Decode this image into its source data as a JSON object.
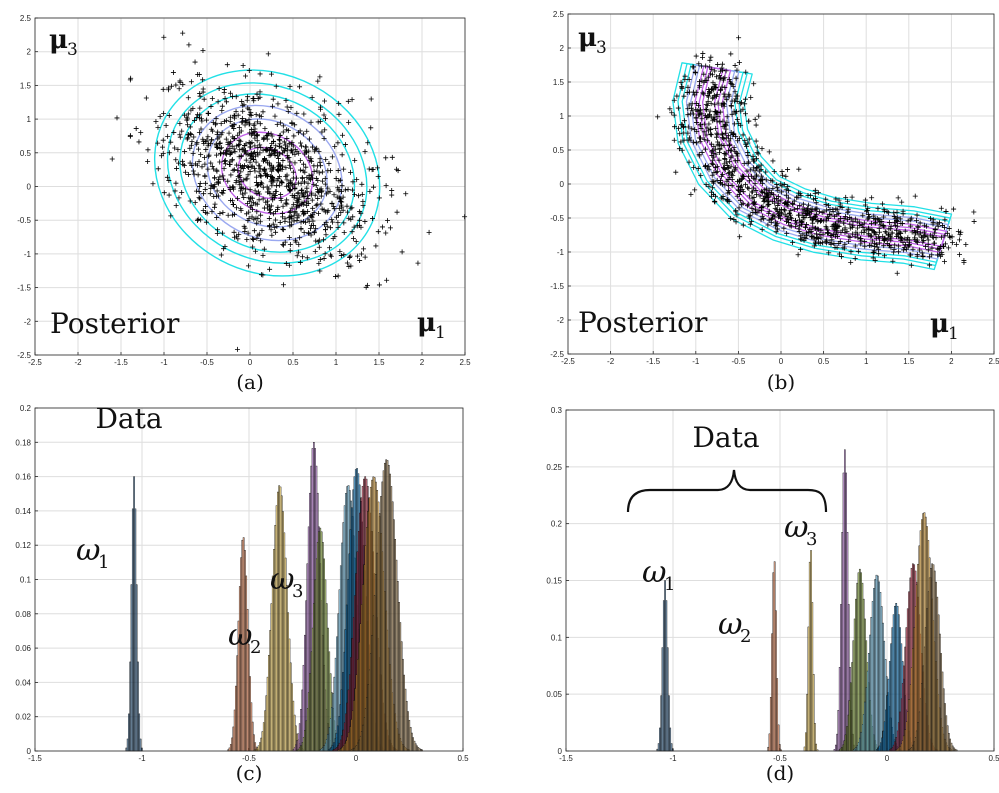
{
  "panels": [
    {
      "id": "a",
      "caption": "(a)"
    },
    {
      "id": "b",
      "caption": "(b)"
    },
    {
      "id": "c",
      "caption": "(c)"
    },
    {
      "id": "d",
      "caption": "(d)"
    }
  ],
  "colors": {
    "contour_outer": "#22e0e6",
    "contour_inner": "#c060e8",
    "points": "#000000",
    "hist": [
      "#1f4e79",
      "#d9713f",
      "#e8c04a",
      "#9b59b6",
      "#7a9a2a",
      "#5fb0d9",
      "#0072bd",
      "#a2142f",
      "#e0a030",
      "#8a6a3a"
    ]
  },
  "chart_data": [
    {
      "type": "scatter",
      "panel": "a",
      "note": "Posterior",
      "x_symbol": "μ",
      "x_subscript": "1",
      "y_symbol": "μ",
      "y_subscript": "3",
      "xlim": [
        -2.5,
        2.5
      ],
      "ylim": [
        -2.5,
        2.5
      ],
      "xticks": [
        "-2.5",
        "-2",
        "-1.5",
        "-1",
        "-0.5",
        "0",
        "0.5",
        "1",
        "1.5",
        "2",
        "2.5"
      ],
      "yticks": [
        "-2.5",
        "-2",
        "-1.5",
        "-1",
        "-0.5",
        "0",
        "0.5",
        "1",
        "1.5",
        "2",
        "2.5"
      ],
      "grid": true,
      "cloud": {
        "center": [
          0.2,
          0.2
        ],
        "spread_x": 0.6,
        "spread_y": 0.65,
        "correlation": -0.45,
        "count": 1100
      },
      "contours": [
        {
          "rx": 1.35,
          "ry": 1.15
        },
        {
          "rx": 1.2,
          "ry": 1.0
        },
        {
          "rx": 1.05,
          "ry": 0.88
        },
        {
          "rx": 0.9,
          "ry": 0.75
        },
        {
          "rx": 0.72,
          "ry": 0.6
        },
        {
          "rx": 0.55,
          "ry": 0.45
        },
        {
          "rx": 0.35,
          "ry": 0.28
        }
      ]
    },
    {
      "type": "scatter",
      "panel": "b",
      "note": "Posterior",
      "x_symbol": "μ",
      "x_subscript": "1",
      "y_symbol": "μ",
      "y_subscript": "3",
      "xlim": [
        -2.5,
        2.5
      ],
      "ylim": [
        -2.5,
        2.5
      ],
      "xticks": [
        "-2.5",
        "-2",
        "-1.5",
        "-1",
        "-0.5",
        "0",
        "0.5",
        "1",
        "1.5",
        "2",
        "2.5"
      ],
      "yticks": [
        "-2.5",
        "-2",
        "-1.5",
        "-1",
        "-0.5",
        "0",
        "0.5",
        "1",
        "1.5",
        "2",
        "2.5"
      ],
      "grid": true,
      "banana": {
        "spine": [
          [
            -0.75,
            1.7
          ],
          [
            -0.85,
            1.2
          ],
          [
            -0.8,
            0.7
          ],
          [
            -0.6,
            0.2
          ],
          [
            -0.3,
            -0.2
          ],
          [
            0.1,
            -0.45
          ],
          [
            0.5,
            -0.6
          ],
          [
            1.0,
            -0.7
          ],
          [
            1.5,
            -0.75
          ],
          [
            1.9,
            -0.85
          ]
        ],
        "width": 0.28,
        "count": 1100
      }
    },
    {
      "type": "bar",
      "panel": "c",
      "subtype": "histogram",
      "note": "Data",
      "labels": [
        {
          "symbol": "ω",
          "sub": "1"
        },
        {
          "symbol": "ω",
          "sub": "2"
        },
        {
          "symbol": "ω",
          "sub": "3"
        }
      ],
      "xlim": [
        -1.5,
        0.5
      ],
      "ylim": [
        0,
        0.2
      ],
      "xticks": [
        "-1.5",
        "-1",
        "-0.5",
        "0",
        "0.5"
      ],
      "yticks": [
        "0",
        "0.02",
        "0.04",
        "0.06",
        "0.08",
        "0.1",
        "0.12",
        "0.14",
        "0.16",
        "0.18",
        "0.2"
      ],
      "series": [
        {
          "mean": -1.04,
          "sd": 0.012,
          "peak": 0.16
        },
        {
          "mean": -0.53,
          "sd": 0.022,
          "peak": 0.125
        },
        {
          "mean": -0.36,
          "sd": 0.035,
          "peak": 0.155
        },
        {
          "mean": -0.2,
          "sd": 0.03,
          "peak": 0.18
        },
        {
          "mean": -0.17,
          "sd": 0.033,
          "peak": 0.13
        },
        {
          "mean": -0.04,
          "sd": 0.04,
          "peak": 0.155
        },
        {
          "mean": 0.0,
          "sd": 0.04,
          "peak": 0.165
        },
        {
          "mean": 0.04,
          "sd": 0.045,
          "peak": 0.16
        },
        {
          "mean": 0.08,
          "sd": 0.05,
          "peak": 0.16
        },
        {
          "mean": 0.14,
          "sd": 0.05,
          "peak": 0.17
        }
      ]
    },
    {
      "type": "bar",
      "panel": "d",
      "subtype": "histogram",
      "note": "Data",
      "labels": [
        {
          "symbol": "ω",
          "sub": "1"
        },
        {
          "symbol": "ω",
          "sub": "2"
        },
        {
          "symbol": "ω",
          "sub": "3"
        }
      ],
      "xlim": [
        -1.5,
        0.5
      ],
      "ylim": [
        0,
        0.3
      ],
      "xticks": [
        "-1.5",
        "-1",
        "-0.5",
        "0",
        "0.5"
      ],
      "yticks": [
        "0",
        "0.05",
        "0.1",
        "0.15",
        "0.2",
        "0.25",
        "0.3"
      ],
      "series": [
        {
          "mean": -1.04,
          "sd": 0.012,
          "peak": 0.15
        },
        {
          "mean": -0.53,
          "sd": 0.01,
          "peak": 0.17
        },
        {
          "mean": -0.36,
          "sd": 0.01,
          "peak": 0.18
        },
        {
          "mean": -0.2,
          "sd": 0.015,
          "peak": 0.265
        },
        {
          "mean": -0.13,
          "sd": 0.03,
          "peak": 0.16
        },
        {
          "mean": -0.05,
          "sd": 0.035,
          "peak": 0.155
        },
        {
          "mean": 0.04,
          "sd": 0.03,
          "peak": 0.13
        },
        {
          "mean": 0.12,
          "sd": 0.035,
          "peak": 0.165
        },
        {
          "mean": 0.17,
          "sd": 0.04,
          "peak": 0.21
        },
        {
          "mean": 0.21,
          "sd": 0.035,
          "peak": 0.165
        }
      ]
    }
  ]
}
